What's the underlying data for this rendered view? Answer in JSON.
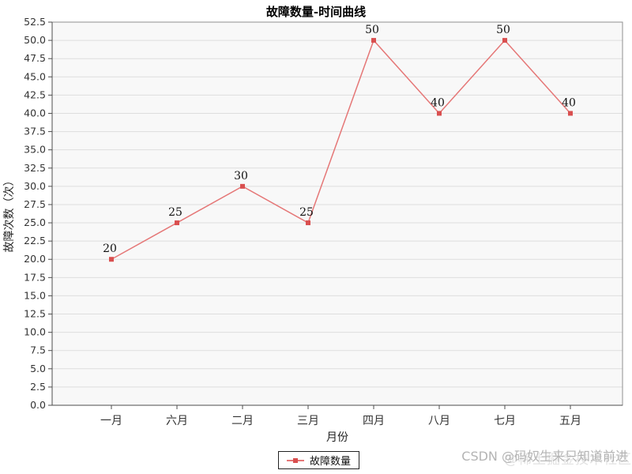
{
  "title": "故障数量-时间曲线",
  "legend": {
    "label": "故障数量"
  },
  "watermark": {
    "primary": "CSDN @码奴生来只知道前进",
    "secondary": "@稀土掘金技术社区"
  },
  "chart_data": {
    "type": "line",
    "title": "故障数量-时间曲线",
    "xlabel": "月份",
    "ylabel": "故障次数（次）",
    "categories": [
      "一月",
      "六月",
      "二月",
      "三月",
      "四月",
      "八月",
      "七月",
      "五月"
    ],
    "series": [
      {
        "name": "故障数量",
        "values": [
          20,
          25,
          30,
          25,
          50,
          40,
          50,
          40
        ]
      }
    ],
    "data_labels": [
      "20",
      "25",
      "30",
      "25",
      "50",
      "40",
      "50",
      "40"
    ],
    "ylim": [
      0,
      52.5
    ],
    "ytick_step": 2.5,
    "grid": true,
    "legend_position": "bottom-outside",
    "colors": {
      "line": "#e57777",
      "marker": "#d94f4f",
      "plot_bg": "#f8f8f8",
      "grid": "#dedede",
      "plot_border": "#8f8f8f",
      "axis": "#4d4d4d",
      "tick_label": "#333333",
      "data_label": "#111111"
    }
  }
}
